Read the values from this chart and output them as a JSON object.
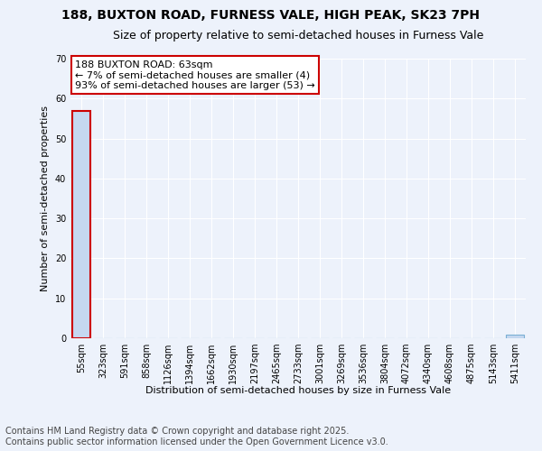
{
  "title1": "188, BUXTON ROAD, FURNESS VALE, HIGH PEAK, SK23 7PH",
  "title2": "Size of property relative to semi-detached houses in Furness Vale",
  "xlabel": "Distribution of semi-detached houses by size in Furness Vale",
  "ylabel": "Number of semi-detached properties",
  "annotation_title": "188 BUXTON ROAD: 63sqm",
  "annotation_line2": "← 7% of semi-detached houses are smaller (4)",
  "annotation_line3": "93% of semi-detached houses are larger (53) →",
  "footer_line1": "Contains HM Land Registry data © Crown copyright and database right 2025.",
  "footer_line2": "Contains public sector information licensed under the Open Government Licence v3.0.",
  "categories": [
    "55sqm",
    "323sqm",
    "591sqm",
    "858sqm",
    "1126sqm",
    "1394sqm",
    "1662sqm",
    "1930sqm",
    "2197sqm",
    "2465sqm",
    "2733sqm",
    "3001sqm",
    "3269sqm",
    "3536sqm",
    "3804sqm",
    "4072sqm",
    "4340sqm",
    "4608sqm",
    "4875sqm",
    "5143sqm",
    "5411sqm"
  ],
  "values": [
    57,
    0,
    0,
    0,
    0,
    0,
    0,
    0,
    0,
    0,
    0,
    0,
    0,
    0,
    0,
    0,
    0,
    0,
    0,
    0,
    1
  ],
  "bar_color": "#c5d8f0",
  "bar_edge_color": "#7aafd4",
  "highlight_edge_color": "#cc0000",
  "ylim": [
    0,
    70
  ],
  "yticks": [
    0,
    10,
    20,
    30,
    40,
    50,
    60,
    70
  ],
  "annotation_box_color": "#ffffff",
  "annotation_box_edge": "#cc0000",
  "background_color": "#edf2fb",
  "grid_color": "#ffffff",
  "title_fontsize": 10,
  "subtitle_fontsize": 9,
  "tick_fontsize": 7,
  "ylabel_fontsize": 8,
  "xlabel_fontsize": 8,
  "footer_fontsize": 7,
  "annotation_fontsize": 8
}
